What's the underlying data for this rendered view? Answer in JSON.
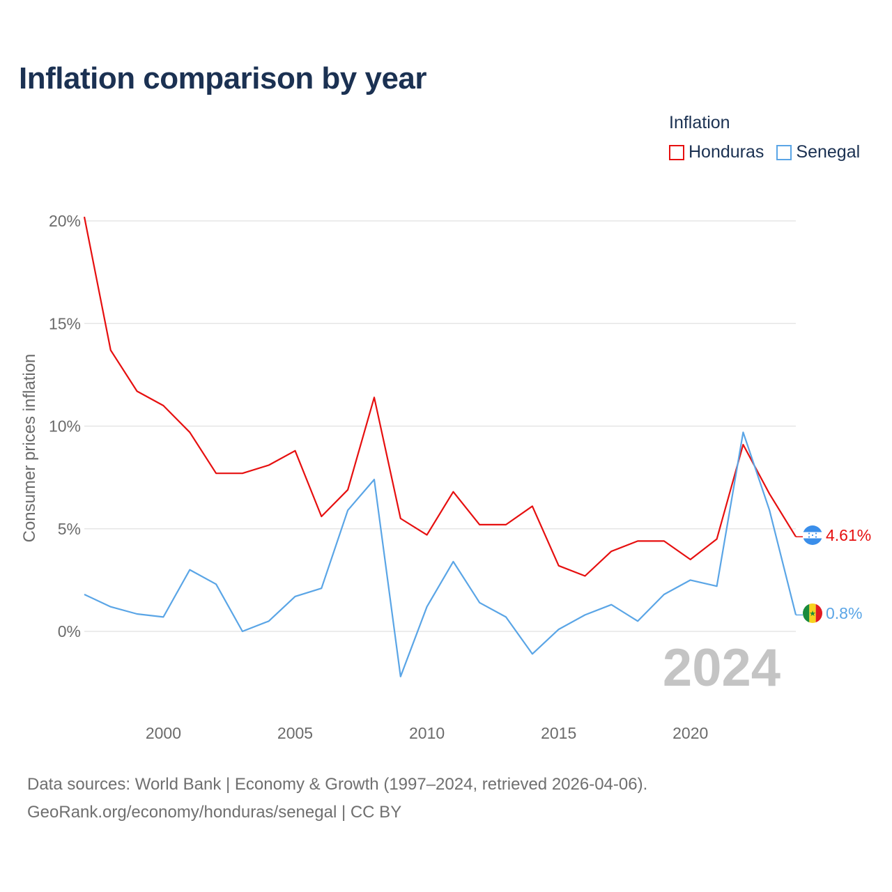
{
  "title": "Inflation comparison by year",
  "legend": {
    "title": "Inflation",
    "items": [
      {
        "label": "Honduras",
        "color": "#e60f0f"
      },
      {
        "label": "Senegal",
        "color": "#5aa5e6"
      }
    ]
  },
  "footer": {
    "line1": "Data sources: World Bank | Economy & Growth (1997–2024, retrieved 2026-04-06).",
    "line2": "GeoRank.org/economy/honduras/senegal | CC BY"
  },
  "chart_data": {
    "type": "line",
    "title": "Inflation comparison by year",
    "xlabel": "",
    "ylabel": "Consumer prices inflation",
    "xlim": [
      1997,
      2024
    ],
    "ylim": [
      -3.5,
      20.5
    ],
    "x_ticks": [
      2000,
      2005,
      2010,
      2015,
      2020
    ],
    "y_ticks": [
      {
        "value": 0,
        "label": "0%"
      },
      {
        "value": 5,
        "label": "5%"
      },
      {
        "value": 10,
        "label": "10%"
      },
      {
        "value": 15,
        "label": "15%"
      },
      {
        "value": 20,
        "label": "20%"
      }
    ],
    "watermark_year": "2024",
    "x": [
      1997,
      1998,
      1999,
      2000,
      2001,
      2002,
      2003,
      2004,
      2005,
      2006,
      2007,
      2008,
      2009,
      2010,
      2011,
      2012,
      2013,
      2014,
      2015,
      2016,
      2017,
      2018,
      2019,
      2020,
      2021,
      2022,
      2023,
      2024
    ],
    "series": [
      {
        "name": "Honduras",
        "color": "#e60f0f",
        "end_label": "4.61%",
        "flag": "honduras-flag-icon",
        "values": [
          20.2,
          13.7,
          11.7,
          11.0,
          9.7,
          7.7,
          7.7,
          8.1,
          8.8,
          5.6,
          6.9,
          11.4,
          5.5,
          4.7,
          6.8,
          5.2,
          5.2,
          6.1,
          3.2,
          2.7,
          3.9,
          4.4,
          4.4,
          3.5,
          4.5,
          9.1,
          6.7,
          4.61
        ]
      },
      {
        "name": "Senegal",
        "color": "#5aa5e6",
        "end_label": "0.8%",
        "flag": "senegal-flag-icon",
        "values": [
          1.8,
          1.2,
          0.85,
          0.7,
          3.0,
          2.3,
          0.0,
          0.5,
          1.7,
          2.1,
          5.9,
          7.4,
          -2.2,
          1.2,
          3.4,
          1.4,
          0.7,
          -1.1,
          0.1,
          0.8,
          1.3,
          0.5,
          1.8,
          2.5,
          2.2,
          9.7,
          5.9,
          0.8
        ]
      }
    ]
  }
}
